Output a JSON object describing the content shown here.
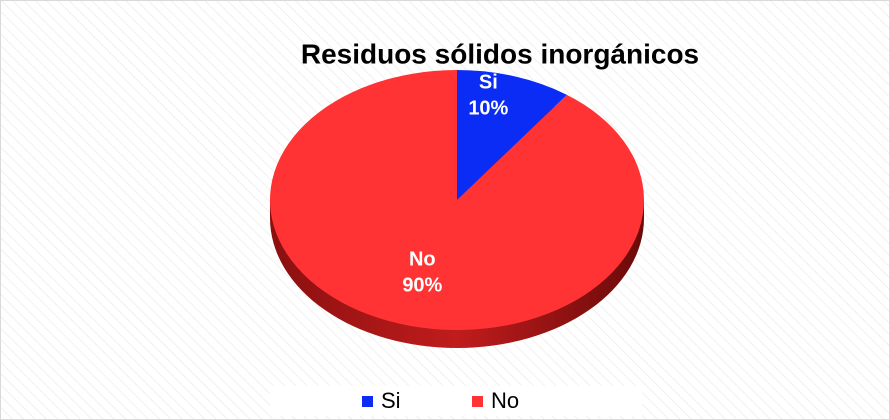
{
  "chart_data": {
    "type": "pie",
    "title": "Residuos sólidos inorgánicos",
    "categories": [
      "Si",
      "No"
    ],
    "values": [
      10,
      90
    ],
    "value_labels": [
      "10%",
      "90%"
    ],
    "colors": [
      "#0a2cf5",
      "#ff3333"
    ],
    "legend": "bottom"
  }
}
